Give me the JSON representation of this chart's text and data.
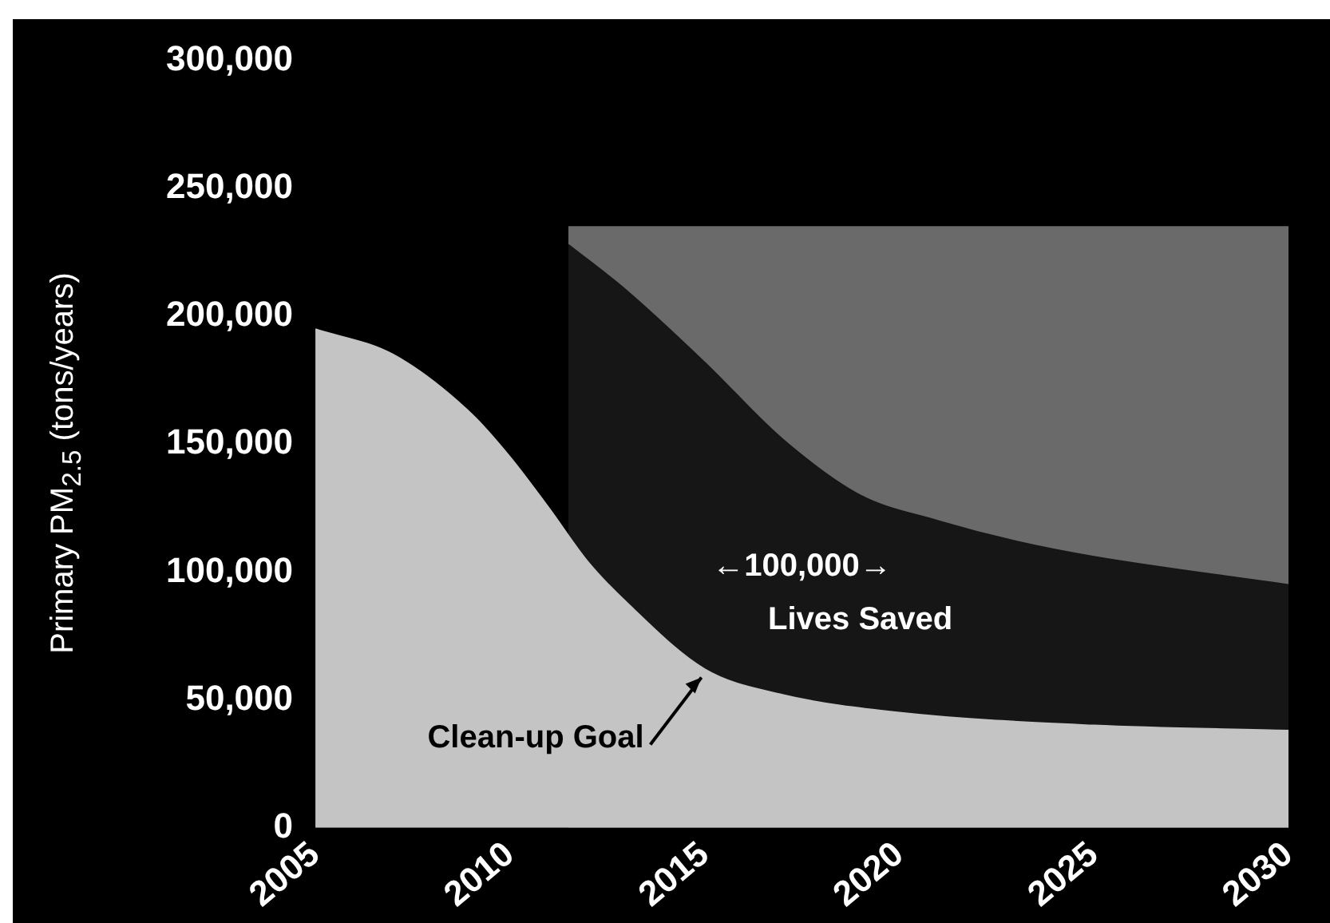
{
  "chart_data": {
    "type": "area",
    "ylabel": "Primary PM$_{2.5}$ (tons/years)",
    "series": [
      {
        "color": "#c4c4c4",
        "x": [
          2005,
          2007,
          2009,
          2010,
          2011,
          2012,
          2013,
          2015,
          2017,
          2020,
          2025,
          2030
        ],
        "values": [
          195000,
          185000,
          162000,
          145000,
          125000,
          104000,
          88000,
          62000,
          52000,
          45000,
          40000,
          38000
        ]
      },
      {
        "color": "#161616",
        "x": [
          2011.5,
          2013,
          2015,
          2017,
          2019,
          2021,
          2023,
          2025,
          2030
        ],
        "values": [
          228000,
          210000,
          182000,
          152000,
          130000,
          120000,
          112000,
          106000,
          95000
        ]
      },
      {
        "color": "#6a6a6a",
        "x": [
          2011.5,
          2015,
          2020,
          2025,
          2030
        ],
        "values": [
          235000,
          235000,
          235000,
          235000,
          235000
        ]
      }
    ],
    "xlim": [
      2005,
      2030
    ],
    "xticks": [
      2005,
      2010,
      2015,
      2020,
      2025,
      2030
    ],
    "ylim": [
      0,
      300000
    ],
    "yticks": [
      {
        "value": 0,
        "label": "0"
      },
      {
        "value": 50000,
        "label": "50,000"
      },
      {
        "value": 100000,
        "label": "100,000"
      },
      {
        "value": 150000,
        "label": "150,000"
      },
      {
        "value": 200000,
        "label": "200,000"
      },
      {
        "value": 250000,
        "label": "250,000"
      },
      {
        "value": 300000,
        "label": "300,000"
      }
    ],
    "grid": false,
    "annotations": [
      {
        "text": "Clean-up Goal",
        "x": 2015,
        "y": 60000
      },
      "←100,000→",
      "Lives Saved"
    ]
  }
}
